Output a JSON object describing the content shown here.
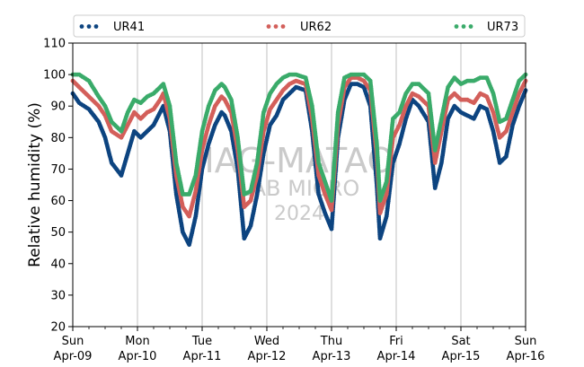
{
  "chart_data": {
    "type": "scatter",
    "ylabel": "Relative humidity (%)",
    "ylim": [
      20,
      110
    ],
    "yticks": [
      20,
      30,
      40,
      50,
      60,
      70,
      80,
      90,
      100,
      110
    ],
    "xlim_days": [
      0,
      7
    ],
    "xticks": [
      {
        "day": "Sun",
        "date": "Apr-09"
      },
      {
        "day": "Mon",
        "date": "Apr-10"
      },
      {
        "day": "Tue",
        "date": "Apr-11"
      },
      {
        "day": "Wed",
        "date": "Apr-12"
      },
      {
        "day": "Thu",
        "date": "Apr-13"
      },
      {
        "day": "Fri",
        "date": "Apr-14"
      },
      {
        "day": "Sat",
        "date": "Apr-15"
      },
      {
        "day": "Sun",
        "date": "Apr-16"
      }
    ],
    "grid": "x-major",
    "legend_placement": "top",
    "watermark": [
      "IAG-MATAO",
      "LAB MICRO",
      "2024"
    ],
    "series": [
      {
        "name": "UR41",
        "color": "#0d4480",
        "x": [
          0,
          0.1,
          0.25,
          0.4,
          0.5,
          0.6,
          0.75,
          0.85,
          0.95,
          1.05,
          1.15,
          1.25,
          1.35,
          1.4,
          1.5,
          1.6,
          1.7,
          1.8,
          1.9,
          2.0,
          2.1,
          2.2,
          2.3,
          2.35,
          2.45,
          2.55,
          2.65,
          2.75,
          2.85,
          2.95,
          3.05,
          3.15,
          3.25,
          3.35,
          3.45,
          3.6,
          3.7,
          3.8,
          3.9,
          4.0,
          4.1,
          4.2,
          4.3,
          4.4,
          4.5,
          4.6,
          4.7,
          4.75,
          4.85,
          4.95,
          5.05,
          5.15,
          5.25,
          5.35,
          5.5,
          5.6,
          5.7,
          5.8,
          5.9,
          6.0,
          6.1,
          6.2,
          6.3,
          6.4,
          6.5,
          6.6,
          6.7,
          6.8,
          6.9,
          7.0
        ],
        "y": [
          94,
          91,
          89,
          85,
          80,
          72,
          68,
          75,
          82,
          80,
          82,
          84,
          88,
          90,
          82,
          62,
          50,
          46,
          55,
          70,
          78,
          84,
          88,
          87,
          82,
          70,
          48,
          52,
          62,
          75,
          84,
          87,
          92,
          94,
          96,
          95,
          82,
          62,
          56,
          51,
          80,
          92,
          97,
          97,
          96,
          90,
          65,
          48,
          55,
          72,
          78,
          86,
          92,
          90,
          85,
          64,
          72,
          86,
          90,
          88,
          87,
          86,
          90,
          89,
          82,
          72,
          74,
          84,
          90,
          95
        ]
      },
      {
        "name": "UR62",
        "color": "#d35f5a",
        "x": [
          0,
          0.1,
          0.25,
          0.4,
          0.5,
          0.6,
          0.75,
          0.85,
          0.95,
          1.05,
          1.15,
          1.25,
          1.35,
          1.4,
          1.5,
          1.6,
          1.7,
          1.8,
          1.9,
          2.0,
          2.1,
          2.2,
          2.3,
          2.35,
          2.45,
          2.55,
          2.65,
          2.75,
          2.85,
          2.95,
          3.05,
          3.15,
          3.25,
          3.35,
          3.45,
          3.6,
          3.7,
          3.8,
          3.9,
          4.0,
          4.1,
          4.2,
          4.3,
          4.4,
          4.5,
          4.6,
          4.7,
          4.75,
          4.85,
          4.95,
          5.05,
          5.15,
          5.25,
          5.35,
          5.5,
          5.6,
          5.7,
          5.8,
          5.9,
          6.0,
          6.1,
          6.2,
          6.3,
          6.4,
          6.5,
          6.6,
          6.7,
          6.8,
          6.9,
          7.0
        ],
        "y": [
          98,
          96,
          93,
          90,
          87,
          82,
          80,
          84,
          88,
          86,
          88,
          89,
          92,
          94,
          86,
          68,
          58,
          55,
          63,
          76,
          84,
          90,
          93,
          92,
          88,
          76,
          58,
          60,
          68,
          82,
          89,
          92,
          95,
          97,
          98,
          97,
          86,
          68,
          62,
          57,
          84,
          96,
          99,
          99,
          98,
          95,
          74,
          56,
          62,
          80,
          84,
          90,
          94,
          93,
          90,
          72,
          82,
          92,
          94,
          92,
          92,
          91,
          94,
          93,
          88,
          80,
          82,
          88,
          94,
          98
        ]
      },
      {
        "name": "UR73",
        "color": "#3aab6a",
        "x": [
          0,
          0.1,
          0.25,
          0.4,
          0.5,
          0.6,
          0.75,
          0.85,
          0.95,
          1.05,
          1.15,
          1.25,
          1.35,
          1.4,
          1.5,
          1.6,
          1.7,
          1.8,
          1.9,
          2.0,
          2.1,
          2.2,
          2.3,
          2.35,
          2.45,
          2.55,
          2.65,
          2.75,
          2.85,
          2.95,
          3.05,
          3.15,
          3.25,
          3.35,
          3.45,
          3.6,
          3.7,
          3.8,
          3.9,
          4.0,
          4.1,
          4.2,
          4.3,
          4.4,
          4.5,
          4.6,
          4.7,
          4.75,
          4.85,
          4.95,
          5.05,
          5.15,
          5.25,
          5.35,
          5.5,
          5.6,
          5.7,
          5.8,
          5.9,
          6.0,
          6.1,
          6.2,
          6.3,
          6.4,
          6.5,
          6.6,
          6.7,
          6.8,
          6.9,
          7.0
        ],
        "y": [
          100,
          100,
          98,
          93,
          90,
          85,
          82,
          88,
          92,
          91,
          93,
          94,
          96,
          97,
          90,
          72,
          62,
          62,
          68,
          82,
          90,
          95,
          97,
          96,
          92,
          80,
          62,
          63,
          72,
          88,
          94,
          97,
          99,
          100,
          100,
          99,
          90,
          72,
          66,
          60,
          88,
          99,
          100,
          100,
          100,
          98,
          78,
          60,
          66,
          86,
          88,
          94,
          97,
          97,
          94,
          76,
          86,
          96,
          99,
          97,
          98,
          98,
          99,
          99,
          94,
          85,
          86,
          92,
          98,
          100
        ]
      }
    ]
  }
}
